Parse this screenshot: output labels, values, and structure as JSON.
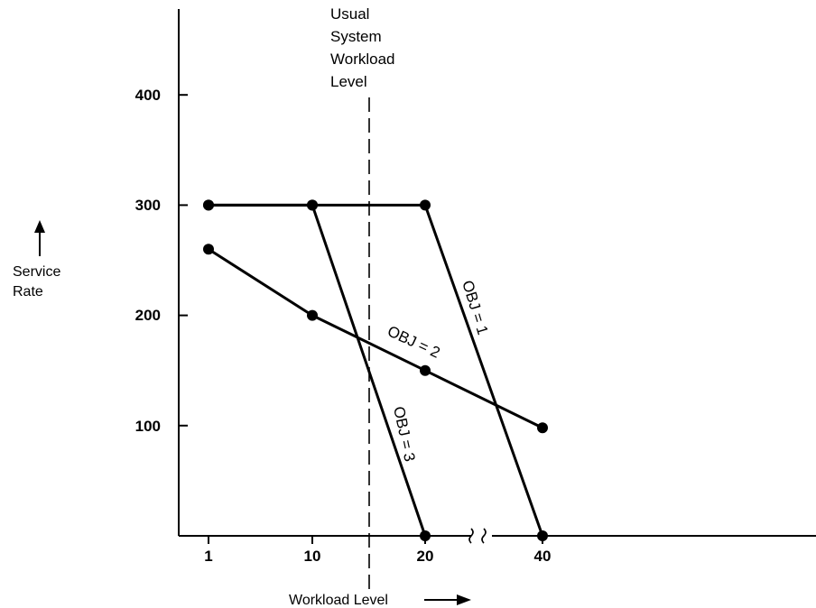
{
  "chart_data": {
    "type": "line",
    "title": "",
    "xlabel": "Workload Level",
    "ylabel_lines": [
      "Service",
      "Rate"
    ],
    "x_tick_labels": [
      "1",
      "10",
      "20",
      "40"
    ],
    "y_tick_labels": [
      "100",
      "200",
      "300",
      "400"
    ],
    "y_ticks": [
      100,
      200,
      300,
      400
    ],
    "ylim": [
      0,
      480
    ],
    "x_axis_break_between": [
      "20",
      "40"
    ],
    "grid": false,
    "reference_line": {
      "label_lines": [
        "Usual",
        "System",
        "Workload",
        "Level"
      ],
      "x_position_between": [
        "10",
        "20"
      ],
      "style": "dashed"
    },
    "series": [
      {
        "name": "OBJ = 1",
        "points": [
          {
            "x": "1",
            "y": 300
          },
          {
            "x": "10",
            "y": 300
          },
          {
            "x": "20",
            "y": 300
          },
          {
            "x": "40",
            "y": 0
          }
        ]
      },
      {
        "name": "OBJ = 2",
        "points": [
          {
            "x": "1",
            "y": 260
          },
          {
            "x": "10",
            "y": 200
          },
          {
            "x": "20",
            "y": 150
          },
          {
            "x": "40",
            "y": 98
          }
        ]
      },
      {
        "name": "OBJ = 3",
        "points": [
          {
            "x": "1",
            "y": 300
          },
          {
            "x": "10",
            "y": 300
          },
          {
            "x": "20",
            "y": 0
          }
        ]
      }
    ],
    "colors": {
      "line": "#000000",
      "background": "#ffffff"
    }
  }
}
